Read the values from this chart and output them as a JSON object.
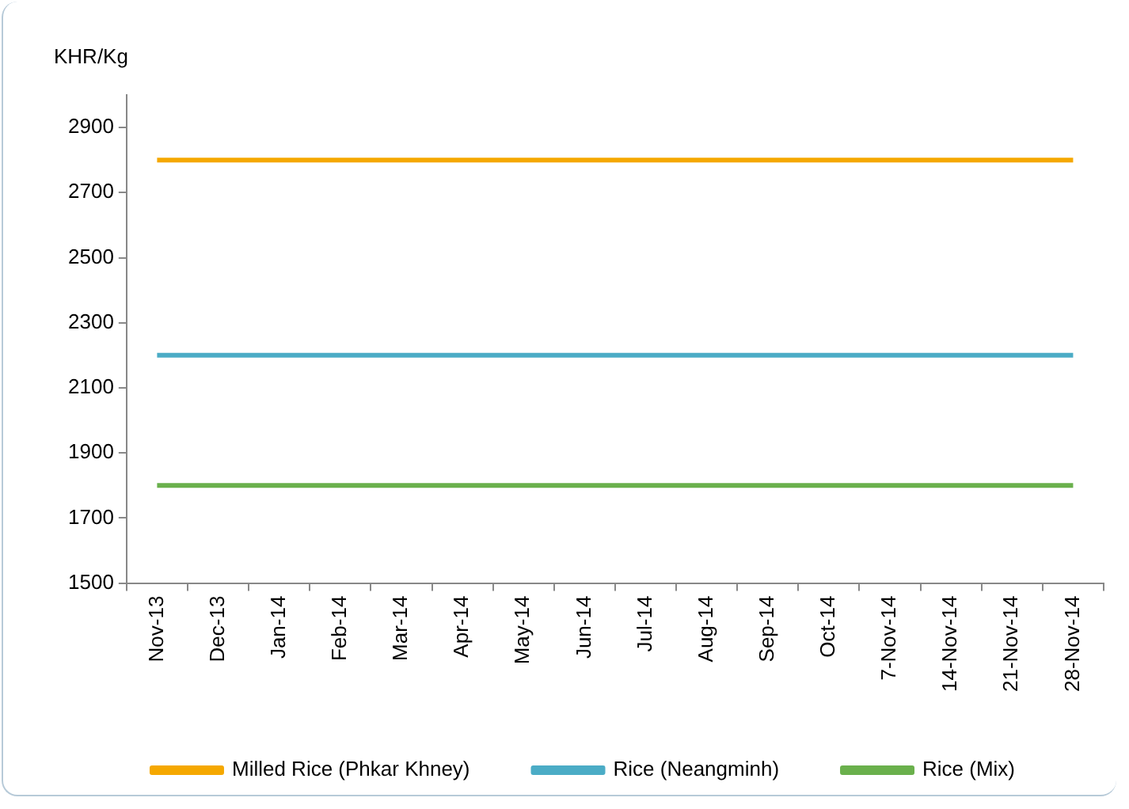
{
  "chart_data": {
    "type": "line",
    "ylabel": "KHR/Kg",
    "categories": [
      "Nov-13",
      "Dec-13",
      "Jan-14",
      "Feb-14",
      "Mar-14",
      "Apr-14",
      "May-14",
      "Jun-14",
      "Jul-14",
      "Aug-14",
      "Sep-14",
      "Oct-14",
      "7-Nov-14",
      "14-Nov-14",
      "21-Nov-14",
      "28-Nov-14"
    ],
    "series": [
      {
        "name": "Milled Rice (Phkar Khney)",
        "color": "#f5a800",
        "values": [
          2800,
          2800,
          2800,
          2800,
          2800,
          2800,
          2800,
          2800,
          2800,
          2800,
          2800,
          2800,
          2800,
          2800,
          2800,
          2800
        ]
      },
      {
        "name": "Rice (Neangminh)",
        "color": "#4bacc6",
        "values": [
          2200,
          2200,
          2200,
          2200,
          2200,
          2200,
          2200,
          2200,
          2200,
          2200,
          2200,
          2200,
          2200,
          2200,
          2200,
          2200
        ]
      },
      {
        "name": "Rice (Mix)",
        "color": "#6ab04c",
        "values": [
          1800,
          1800,
          1800,
          1800,
          1800,
          1800,
          1800,
          1800,
          1800,
          1800,
          1800,
          1800,
          1800,
          1800,
          1800,
          1800
        ]
      }
    ],
    "ylim": [
      1500,
      3000
    ],
    "yticks": [
      1500,
      1700,
      1900,
      2100,
      2300,
      2500,
      2700,
      2900
    ],
    "grid": false,
    "legend": "bottom",
    "marker": "none",
    "line_style": "solid"
  }
}
